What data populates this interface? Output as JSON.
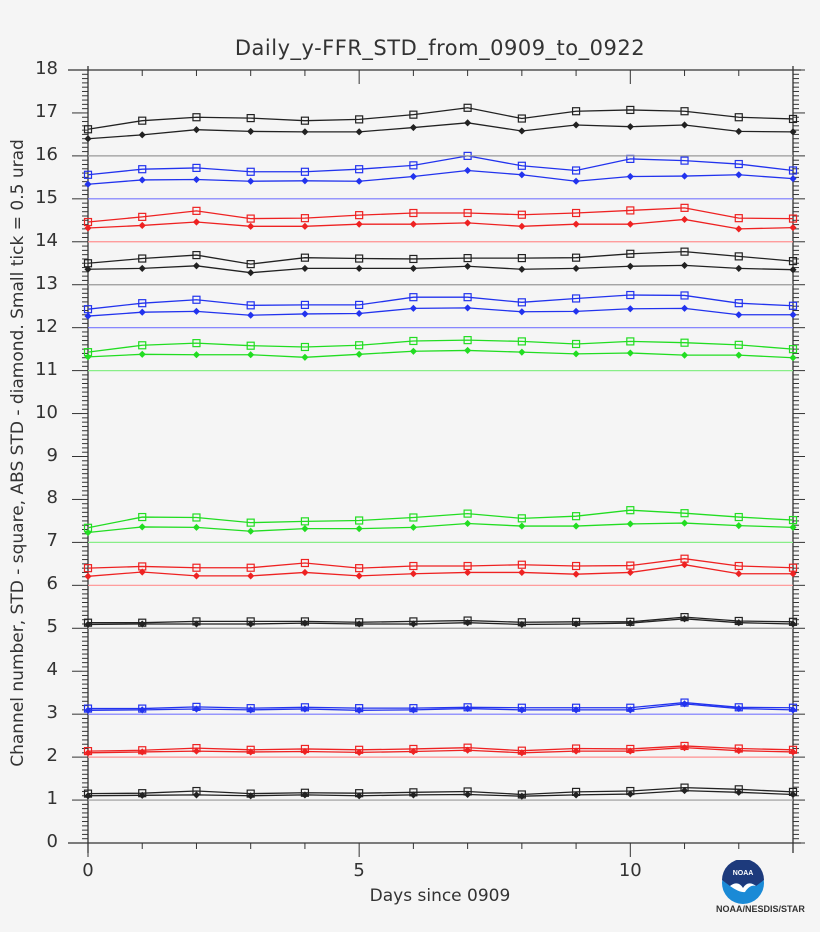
{
  "chart_data": {
    "type": "line",
    "title": "Daily_y-FFR_STD_from_0909_to_0922",
    "xlabel": "Days since 0909",
    "ylabel": "Channel number, STD - square, ABS STD - diamond. Small tick = 0.5 urad",
    "xlim": [
      0,
      13
    ],
    "ylim": [
      0,
      18
    ],
    "xticks": [
      0,
      5,
      10
    ],
    "yticks": [
      0,
      1,
      2,
      3,
      4,
      5,
      6,
      7,
      8,
      9,
      10,
      11,
      12,
      13,
      14,
      15,
      16,
      17,
      18
    ],
    "grid": false,
    "legend": "none (channel reference lines at integer values)",
    "x": [
      0,
      1,
      2,
      3,
      4,
      5,
      6,
      7,
      8,
      9,
      10,
      11,
      12,
      13
    ],
    "channels": [
      {
        "channel": 1,
        "color": "#000000",
        "std_square": [
          1.15,
          1.16,
          1.21,
          1.15,
          1.17,
          1.16,
          1.18,
          1.2,
          1.13,
          1.19,
          1.21,
          1.29,
          1.25,
          1.19
        ],
        "abs_std_diamond": [
          1.1,
          1.11,
          1.12,
          1.1,
          1.12,
          1.1,
          1.12,
          1.13,
          1.09,
          1.12,
          1.14,
          1.22,
          1.18,
          1.13
        ]
      },
      {
        "channel": 2,
        "color": "#ff0000",
        "std_square": [
          2.14,
          2.16,
          2.21,
          2.17,
          2.19,
          2.17,
          2.19,
          2.22,
          2.15,
          2.2,
          2.19,
          2.26,
          2.2,
          2.17
        ],
        "abs_std_diamond": [
          2.1,
          2.12,
          2.14,
          2.12,
          2.13,
          2.11,
          2.13,
          2.16,
          2.1,
          2.14,
          2.14,
          2.22,
          2.15,
          2.12
        ]
      },
      {
        "channel": 3,
        "color": "#0000ff",
        "std_square": [
          3.13,
          3.13,
          3.17,
          3.14,
          3.16,
          3.14,
          3.14,
          3.16,
          3.15,
          3.15,
          3.15,
          3.27,
          3.16,
          3.15
        ],
        "abs_std_diamond": [
          3.09,
          3.1,
          3.12,
          3.1,
          3.12,
          3.09,
          3.1,
          3.13,
          3.1,
          3.1,
          3.1,
          3.24,
          3.13,
          3.1
        ]
      },
      {
        "channel": 5,
        "color": "#000000",
        "std_square": [
          5.13,
          5.13,
          5.16,
          5.16,
          5.16,
          5.14,
          5.16,
          5.18,
          5.14,
          5.15,
          5.15,
          5.26,
          5.17,
          5.15
        ],
        "abs_std_diamond": [
          5.09,
          5.1,
          5.1,
          5.1,
          5.12,
          5.1,
          5.1,
          5.13,
          5.09,
          5.1,
          5.12,
          5.22,
          5.13,
          5.1
        ]
      },
      {
        "channel": 6,
        "color": "#ff0000",
        "std_square": [
          6.4,
          6.44,
          6.41,
          6.41,
          6.52,
          6.4,
          6.45,
          6.45,
          6.48,
          6.45,
          6.46,
          6.62,
          6.45,
          6.41
        ],
        "abs_std_diamond": [
          6.21,
          6.31,
          6.22,
          6.22,
          6.3,
          6.22,
          6.27,
          6.3,
          6.3,
          6.26,
          6.3,
          6.48,
          6.27,
          6.27
        ]
      },
      {
        "channel": 7,
        "color": "#00dd00",
        "std_square": [
          7.34,
          7.59,
          7.58,
          7.46,
          7.49,
          7.51,
          7.58,
          7.67,
          7.56,
          7.61,
          7.75,
          7.68,
          7.59,
          7.52
        ],
        "abs_std_diamond": [
          7.23,
          7.36,
          7.35,
          7.26,
          7.32,
          7.32,
          7.35,
          7.44,
          7.38,
          7.38,
          7.43,
          7.45,
          7.39,
          7.35
        ]
      },
      {
        "channel": 11,
        "color": "#00dd00",
        "std_square": [
          11.43,
          11.59,
          11.64,
          11.58,
          11.55,
          11.59,
          11.69,
          11.71,
          11.68,
          11.62,
          11.68,
          11.65,
          11.6,
          11.5
        ],
        "abs_std_diamond": [
          11.32,
          11.38,
          11.37,
          11.37,
          11.31,
          11.38,
          11.45,
          11.47,
          11.43,
          11.39,
          11.41,
          11.36,
          11.36,
          11.3
        ]
      },
      {
        "channel": 12,
        "color": "#0000ff",
        "std_square": [
          12.43,
          12.57,
          12.65,
          12.52,
          12.53,
          12.53,
          12.71,
          12.71,
          12.59,
          12.68,
          12.76,
          12.75,
          12.57,
          12.51
        ],
        "abs_std_diamond": [
          12.27,
          12.36,
          12.38,
          12.29,
          12.32,
          12.33,
          12.45,
          12.46,
          12.37,
          12.38,
          12.44,
          12.45,
          12.3,
          12.3
        ]
      },
      {
        "channel": 13,
        "color": "#000000",
        "std_square": [
          13.5,
          13.61,
          13.69,
          13.48,
          13.63,
          13.61,
          13.6,
          13.62,
          13.62,
          13.63,
          13.72,
          13.77,
          13.66,
          13.55
        ],
        "abs_std_diamond": [
          13.36,
          13.38,
          13.44,
          13.28,
          13.38,
          13.38,
          13.38,
          13.43,
          13.36,
          13.38,
          13.43,
          13.45,
          13.38,
          13.35
        ]
      },
      {
        "channel": 14,
        "color": "#ff0000",
        "std_square": [
          14.46,
          14.58,
          14.72,
          14.54,
          14.55,
          14.62,
          14.67,
          14.67,
          14.63,
          14.67,
          14.73,
          14.79,
          14.55,
          14.54
        ],
        "abs_std_diamond": [
          14.32,
          14.38,
          14.46,
          14.36,
          14.36,
          14.41,
          14.41,
          14.44,
          14.36,
          14.41,
          14.41,
          14.52,
          14.3,
          14.33
        ]
      },
      {
        "channel": 15,
        "color": "#0000ff",
        "std_square": [
          15.56,
          15.69,
          15.72,
          15.63,
          15.63,
          15.69,
          15.78,
          16.0,
          15.77,
          15.66,
          15.93,
          15.89,
          15.81,
          15.66
        ],
        "abs_std_diamond": [
          15.34,
          15.44,
          15.45,
          15.41,
          15.42,
          15.41,
          15.52,
          15.66,
          15.56,
          15.41,
          15.52,
          15.53,
          15.56,
          15.47
        ]
      },
      {
        "channel": 16,
        "color": "#000000",
        "std_square": [
          16.62,
          16.82,
          16.9,
          16.88,
          16.82,
          16.85,
          16.96,
          17.12,
          16.87,
          17.04,
          17.07,
          17.04,
          16.9,
          16.86
        ],
        "abs_std_diamond": [
          16.4,
          16.49,
          16.61,
          16.57,
          16.56,
          16.56,
          16.66,
          16.77,
          16.58,
          16.72,
          16.68,
          16.72,
          16.57,
          16.56
        ]
      }
    ]
  },
  "axes": {
    "y_tick_labels": [
      "0",
      "1",
      "2",
      "3",
      "4",
      "5",
      "6",
      "7",
      "8",
      "9",
      "10",
      "11",
      "12",
      "13",
      "14",
      "15",
      "16",
      "17",
      "18"
    ],
    "x_tick_labels": [
      "0",
      "5",
      "10"
    ]
  },
  "logo": {
    "inner_text": "NOAA",
    "caption": "NOAA/NESDIS/STAR",
    "colors": {
      "dark": "#1d3a7c",
      "light": "#1a8ad6"
    }
  },
  "colors": {
    "background": "#f5f5f5",
    "axis": "#333333",
    "black_series": "#222222",
    "red_series": "#ee2222",
    "blue_series": "#2233ee",
    "green_series": "#22dd22"
  }
}
